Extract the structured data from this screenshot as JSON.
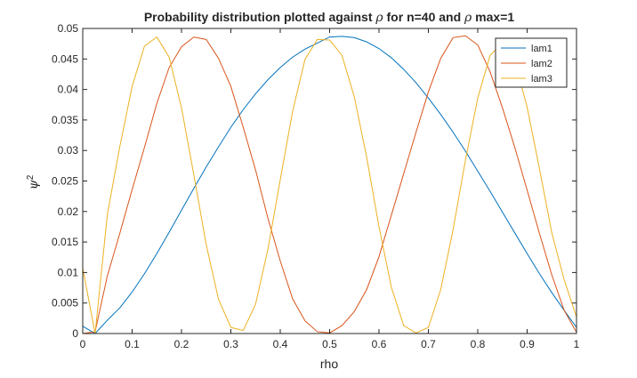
{
  "chart_data": {
    "type": "line",
    "title": {
      "prefix": "Probability distribution plotted against ",
      "symbol": "ρ",
      "middle": " for n=40 and ",
      "symbol2": "ρ",
      "suffix": " max=1"
    },
    "xlabel": "rho",
    "ylabel": {
      "base": "ψ",
      "superscript": "2"
    },
    "xlim": [
      0,
      1
    ],
    "ylim": [
      0,
      0.05
    ],
    "xticks": [
      0,
      0.1,
      0.2,
      0.3,
      0.4,
      0.5,
      0.6,
      0.7,
      0.8,
      0.9,
      1
    ],
    "xtick_labels": [
      "0",
      "0.1",
      "0.2",
      "0.3",
      "0.4",
      "0.5",
      "0.6",
      "0.7",
      "0.8",
      "0.9",
      "1"
    ],
    "yticks": [
      0,
      0.005,
      0.01,
      0.015,
      0.02,
      0.025,
      0.03,
      0.035,
      0.04,
      0.045,
      0.05
    ],
    "ytick_labels": [
      "0",
      "0.005",
      "0.01",
      "0.015",
      "0.02",
      "0.025",
      "0.03",
      "0.035",
      "0.04",
      "0.045",
      "0.05"
    ],
    "grid": false,
    "legend_position": "top-right",
    "x": [
      0,
      0.025,
      0.05,
      0.075,
      0.1,
      0.125,
      0.15,
      0.175,
      0.2,
      0.225,
      0.25,
      0.275,
      0.3,
      0.325,
      0.35,
      0.375,
      0.4,
      0.425,
      0.45,
      0.475,
      0.5,
      0.525,
      0.55,
      0.575,
      0.6,
      0.625,
      0.65,
      0.675,
      0.7,
      0.725,
      0.75,
      0.775,
      0.8,
      0.825,
      0.85,
      0.875,
      0.9,
      0.925,
      0.95,
      0.975,
      1
    ],
    "series": [
      {
        "name": "lam1",
        "color": "#0072BD",
        "values": [
          0.0012,
          0,
          0.0022,
          0.0042,
          0.0068,
          0.0098,
          0.0131,
          0.0166,
          0.0202,
          0.0238,
          0.0273,
          0.0306,
          0.0338,
          0.0367,
          0.0393,
          0.0416,
          0.0436,
          0.0453,
          0.0466,
          0.0476,
          0.0486,
          0.0487,
          0.0485,
          0.0478,
          0.0467,
          0.0452,
          0.0433,
          0.0411,
          0.0386,
          0.0359,
          0.033,
          0.0299,
          0.0266,
          0.0233,
          0.0199,
          0.0165,
          0.0131,
          0.0098,
          0.0067,
          0.0038,
          0.001
        ]
      },
      {
        "name": "lam2",
        "color": "#D95319",
        "values": [
          0,
          0.0003,
          0.0095,
          0.0164,
          0.0236,
          0.0305,
          0.0377,
          0.0436,
          0.047,
          0.0486,
          0.0482,
          0.0451,
          0.0405,
          0.0338,
          0.0268,
          0.0189,
          0.0119,
          0.0057,
          0.0021,
          0.0003,
          0.0001,
          0.0013,
          0.0036,
          0.0072,
          0.0126,
          0.0194,
          0.0262,
          0.033,
          0.0396,
          0.0451,
          0.0485,
          0.0488,
          0.0473,
          0.0429,
          0.037,
          0.0305,
          0.0235,
          0.0164,
          0.0096,
          0.0038,
          0.0002
        ]
      },
      {
        "name": "lam3",
        "color": "#EDB120",
        "values": [
          0.0107,
          0,
          0.0196,
          0.0306,
          0.0405,
          0.0471,
          0.0486,
          0.0453,
          0.037,
          0.026,
          0.0146,
          0.0056,
          0.001,
          0.0005,
          0.0048,
          0.0138,
          0.0252,
          0.0364,
          0.0449,
          0.0482,
          0.0481,
          0.0456,
          0.0388,
          0.0289,
          0.0175,
          0.0076,
          0.0013,
          0.0001,
          0.001,
          0.0072,
          0.017,
          0.0284,
          0.0386,
          0.0456,
          0.0476,
          0.0447,
          0.0371,
          0.027,
          0.0165,
          0.0088,
          0.0027
        ]
      }
    ]
  }
}
